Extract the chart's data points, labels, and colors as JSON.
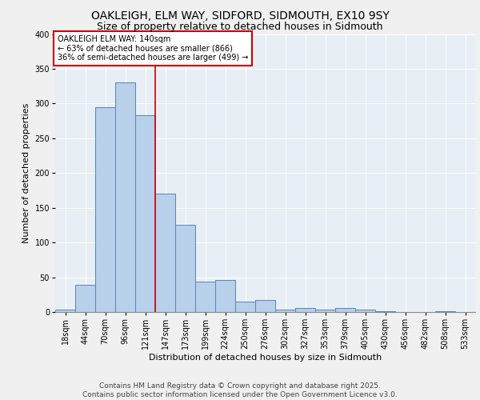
{
  "title_line1": "OAKLEIGH, ELM WAY, SIDFORD, SIDMOUTH, EX10 9SY",
  "title_line2": "Size of property relative to detached houses in Sidmouth",
  "xlabel": "Distribution of detached houses by size in Sidmouth",
  "ylabel": "Number of detached properties",
  "bar_labels": [
    "18sqm",
    "44sqm",
    "70sqm",
    "96sqm",
    "121sqm",
    "147sqm",
    "173sqm",
    "199sqm",
    "224sqm",
    "250sqm",
    "276sqm",
    "302sqm",
    "327sqm",
    "353sqm",
    "379sqm",
    "405sqm",
    "430sqm",
    "456sqm",
    "482sqm",
    "508sqm",
    "533sqm"
  ],
  "bar_values": [
    3,
    39,
    295,
    330,
    283,
    170,
    125,
    44,
    46,
    15,
    17,
    4,
    6,
    4,
    6,
    3,
    1,
    0,
    0,
    1,
    0
  ],
  "bar_color": "#b8d0ea",
  "bar_edge_color": "#5585bb",
  "background_color": "#e8eef5",
  "grid_color": "#ffffff",
  "vline_x_index": 4.5,
  "annotation_text": "OAKLEIGH ELM WAY: 140sqm\n← 63% of detached houses are smaller (866)\n36% of semi-detached houses are larger (499) →",
  "annotation_box_color": "#ffffff",
  "annotation_box_edge": "#cc0000",
  "vline_color": "#cc0000",
  "ylim": [
    0,
    400
  ],
  "yticks": [
    0,
    50,
    100,
    150,
    200,
    250,
    300,
    350,
    400
  ],
  "footer_line1": "Contains HM Land Registry data © Crown copyright and database right 2025.",
  "footer_line2": "Contains public sector information licensed under the Open Government Licence v3.0.",
  "title1_fontsize": 10,
  "title2_fontsize": 9,
  "axis_label_fontsize": 8,
  "tick_fontsize": 7,
  "annotation_fontsize": 7,
  "footer_fontsize": 6.5
}
